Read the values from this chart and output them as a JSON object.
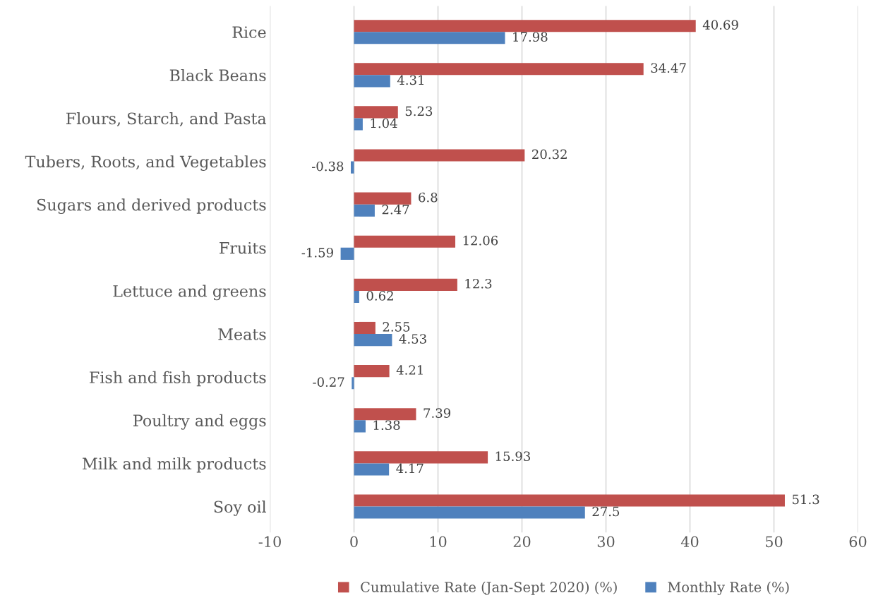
{
  "chart_data": {
    "type": "bar",
    "orientation": "horizontal",
    "categories": [
      "Rice",
      "Black Beans",
      "Flours, Starch, and Pasta",
      "Tubers, Roots, and Vegetables",
      "Sugars and derived products",
      "Fruits",
      "Lettuce and greens",
      "Meats",
      "Fish and fish products",
      "Poultry and eggs",
      "Milk and milk products",
      "Soy oil"
    ],
    "series": [
      {
        "name": "Cumulative Rate (Jan-Sept 2020) (%)",
        "color": "#c0504d",
        "values": [
          40.69,
          34.47,
          5.23,
          20.32,
          6.8,
          12.06,
          12.3,
          2.55,
          4.21,
          7.39,
          15.93,
          51.3
        ]
      },
      {
        "name": "Monthly Rate (%)",
        "color": "#4f81bd",
        "values": [
          17.98,
          4.31,
          1.04,
          -0.38,
          2.47,
          -1.59,
          0.62,
          4.53,
          -0.27,
          1.38,
          4.17,
          27.5
        ]
      }
    ],
    "xlim": [
      -10,
      60
    ],
    "xticks": [
      -10,
      0,
      10,
      20,
      30,
      40,
      50,
      60
    ],
    "grid": "x",
    "legend": "bottom",
    "data_labels": true
  }
}
